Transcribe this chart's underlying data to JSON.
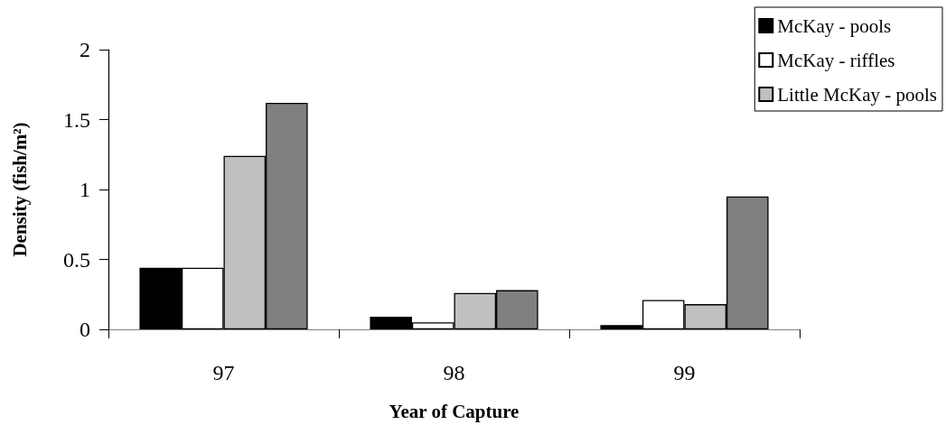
{
  "chart_data": {
    "type": "bar",
    "xlabel": "Year of Capture",
    "ylabel": "Density (fish/m²)",
    "categories": [
      "97",
      "98",
      "99"
    ],
    "series": [
      {
        "name": "McKay - pools",
        "color": "#000000",
        "values": [
          0.44,
          0.09,
          0.03
        ]
      },
      {
        "name": "McKay - riffles",
        "color": "#ffffff",
        "values": [
          0.44,
          0.05,
          0.21
        ]
      },
      {
        "name": "Little McKay - pools",
        "color": "#c0c0c0",
        "values": [
          1.24,
          0.26,
          0.18
        ]
      },
      {
        "color": "#808080",
        "values": [
          1.62,
          0.28,
          0.95
        ]
      }
    ],
    "ylim": [
      0,
      2
    ],
    "yticks": [
      0,
      0.5,
      1,
      1.5,
      2
    ],
    "grid": false,
    "legend": "top right"
  }
}
